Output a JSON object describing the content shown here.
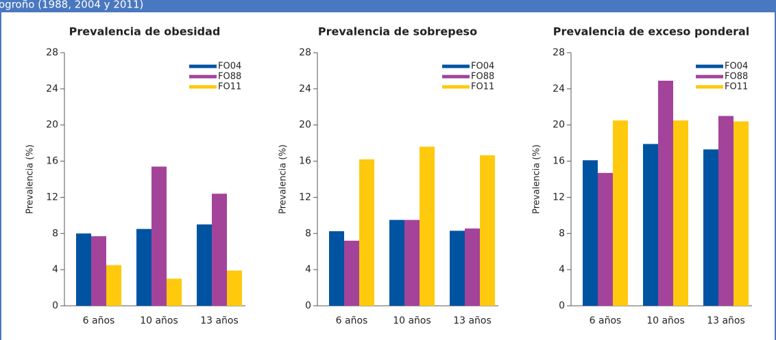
{
  "header": {
    "title": "ogroño (1988, 2004 y 2011)"
  },
  "chart_data": [
    {
      "type": "bar",
      "title": "Prevalencia de obesidad",
      "ylabel": "Prevalencia (%)",
      "categories": [
        "6 años",
        "10 años",
        "13 años"
      ],
      "series": [
        {
          "name": "FO04",
          "color": "#0053a1",
          "values": [
            8.0,
            8.5,
            9.0
          ]
        },
        {
          "name": "FO88",
          "color": "#a3449a",
          "values": [
            7.7,
            15.4,
            12.4
          ]
        },
        {
          "name": "FO11",
          "color": "#ffc90d",
          "values": [
            4.5,
            3.0,
            3.9
          ]
        }
      ],
      "ylim": [
        0,
        28
      ],
      "yticks": [
        0,
        4,
        8,
        12,
        16,
        20,
        24,
        28
      ],
      "legend": "upper-right"
    },
    {
      "type": "bar",
      "title": "Prevalencia de sobrepeso",
      "ylabel": "Prevalencia (%)",
      "categories": [
        "6 años",
        "10 años",
        "13 años"
      ],
      "series": [
        {
          "name": "FO04",
          "color": "#0053a1",
          "values": [
            8.25,
            9.5,
            8.3
          ]
        },
        {
          "name": "FO88",
          "color": "#a3449a",
          "values": [
            7.2,
            9.5,
            8.55
          ]
        },
        {
          "name": "FO11",
          "color": "#ffc90d",
          "values": [
            16.2,
            17.6,
            16.65
          ]
        }
      ],
      "ylim": [
        0,
        28
      ],
      "yticks": [
        0,
        4,
        8,
        12,
        16,
        20,
        24,
        28
      ],
      "legend": "upper-right"
    },
    {
      "type": "bar",
      "title": "Prevalencia de exceso ponderal",
      "ylabel": "Prevalencia (%)",
      "categories": [
        "6 años",
        "10 años",
        "13 años"
      ],
      "series": [
        {
          "name": "FO04",
          "color": "#0053a1",
          "values": [
            16.1,
            17.9,
            17.3
          ]
        },
        {
          "name": "FO88",
          "color": "#a3449a",
          "values": [
            14.7,
            24.9,
            21.0
          ]
        },
        {
          "name": "FO11",
          "color": "#ffc90d",
          "values": [
            20.5,
            20.5,
            20.4
          ]
        }
      ],
      "ylim": [
        0,
        28
      ],
      "yticks": [
        0,
        4,
        8,
        12,
        16,
        20,
        24,
        28
      ],
      "legend": "upper-right"
    }
  ]
}
